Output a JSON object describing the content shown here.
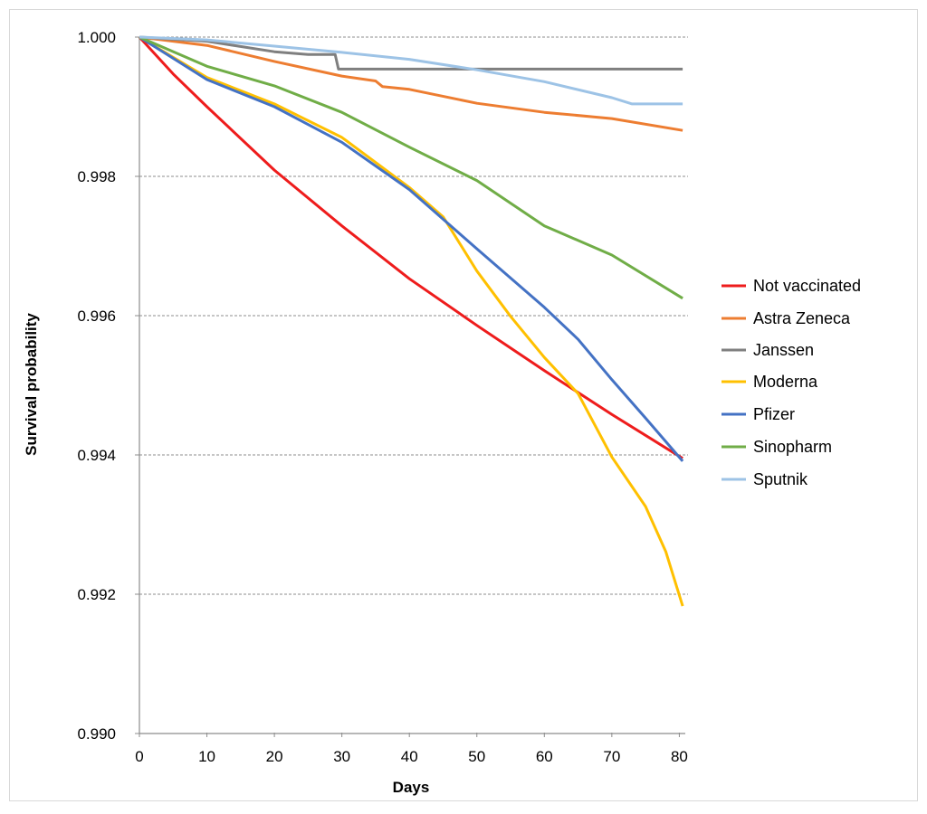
{
  "chart_data": {
    "type": "line",
    "title": "",
    "xlabel": "Days",
    "ylabel": "Survival probability",
    "xlim": [
      0,
      81
    ],
    "ylim": [
      0.99,
      1.0
    ],
    "xticks": [
      "0",
      "10",
      "20",
      "30",
      "40",
      "50",
      "60",
      "70",
      "80"
    ],
    "yticks": [
      "0.990",
      "0.992",
      "0.994",
      "0.996",
      "0.998",
      "1.000"
    ],
    "grid": "horizontal dashed",
    "legend_position": "right",
    "series": [
      {
        "name": "Not vaccinated",
        "color": "#ee1c1c",
        "x": [
          0,
          5,
          10,
          20,
          30,
          40,
          50,
          60,
          70,
          80.5
        ],
        "y": [
          1.0,
          0.99947,
          0.999,
          0.99809,
          0.99729,
          0.99653,
          0.99586,
          0.99521,
          0.99458,
          0.99395
        ]
      },
      {
        "name": "Astra Zeneca",
        "color": "#ed7d31",
        "x": [
          0,
          10,
          20,
          30,
          35,
          36,
          40,
          50,
          60,
          70,
          80.5
        ],
        "y": [
          1.0,
          0.99988,
          0.99965,
          0.99944,
          0.99937,
          0.99929,
          0.99925,
          0.99905,
          0.99892,
          0.99883,
          0.99866
        ]
      },
      {
        "name": "Janssen",
        "color": "#7f7f7f",
        "x": [
          0,
          10,
          20,
          25,
          29,
          29.5,
          80.5
        ],
        "y": [
          1.0,
          0.99994,
          0.99979,
          0.99975,
          0.99975,
          0.99954,
          0.99954
        ]
      },
      {
        "name": "Moderna",
        "color": "#ffc000",
        "x": [
          0,
          10,
          20,
          30,
          40,
          45,
          50,
          55,
          60,
          65,
          70,
          75,
          78,
          80.5
        ],
        "y": [
          1.0,
          0.99942,
          0.99904,
          0.99856,
          0.99784,
          0.99742,
          0.99664,
          0.99599,
          0.9954,
          0.99488,
          0.99397,
          0.99326,
          0.99261,
          0.99183
        ]
      },
      {
        "name": "Pfizer",
        "color": "#4472c4",
        "x": [
          0,
          10,
          20,
          30,
          40,
          50,
          60,
          65,
          70,
          75,
          80.5
        ],
        "y": [
          1.0,
          0.99939,
          0.999,
          0.99849,
          0.99781,
          0.99696,
          0.99612,
          0.99566,
          0.99508,
          0.99453,
          0.99391
        ]
      },
      {
        "name": "Sinopharm",
        "color": "#70ad47",
        "x": [
          0,
          10,
          20,
          30,
          40,
          50,
          60,
          70,
          80.5
        ],
        "y": [
          1.0,
          0.99958,
          0.9993,
          0.99892,
          0.99842,
          0.99794,
          0.99729,
          0.99687,
          0.99625
        ]
      },
      {
        "name": "Sputnik",
        "color": "#9dc3e6",
        "x": [
          0,
          10,
          20,
          30,
          40,
          50,
          60,
          70,
          73,
          80.5
        ],
        "y": [
          1.0,
          0.99996,
          0.99987,
          0.99978,
          0.99968,
          0.99953,
          0.99936,
          0.99913,
          0.99904,
          0.99904
        ]
      }
    ]
  }
}
